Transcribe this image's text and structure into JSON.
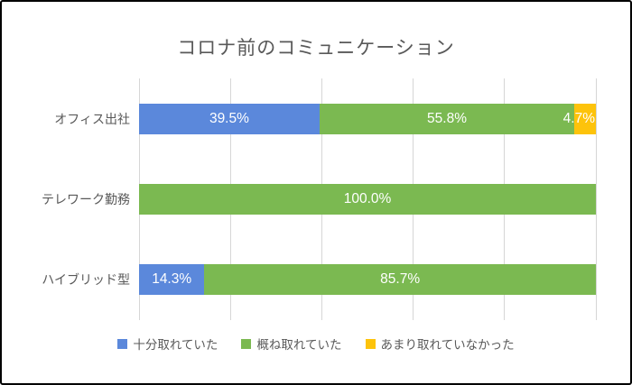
{
  "frame": {
    "background": "#ffffff",
    "border_color": "#000000"
  },
  "chart_data": {
    "type": "bar",
    "orientation": "horizontal-stacked",
    "title": "コロナ前のコミュニケーション",
    "categories": [
      "オフィス出社",
      "テレワーク勤務",
      "ハイブリッド型"
    ],
    "series": [
      {
        "name": "十分取れていた",
        "color": "#5B88DB",
        "values": [
          39.5,
          0,
          14.3
        ]
      },
      {
        "name": "概ね取れていた",
        "color": "#7BB951",
        "values": [
          55.8,
          100.0,
          85.7
        ]
      },
      {
        "name": "あまり取れていなかった",
        "color": "#FDC30B",
        "values": [
          4.7,
          0,
          0
        ]
      }
    ],
    "value_suffix": "%",
    "xlim": [
      0,
      100
    ],
    "gridlines": [
      0,
      20,
      40,
      60,
      80,
      100
    ],
    "grid_color": "#D6D6D6",
    "data_label_color": "#FFFFFF",
    "text_color": "#595959",
    "legend_position": "bottom",
    "grid": true
  }
}
